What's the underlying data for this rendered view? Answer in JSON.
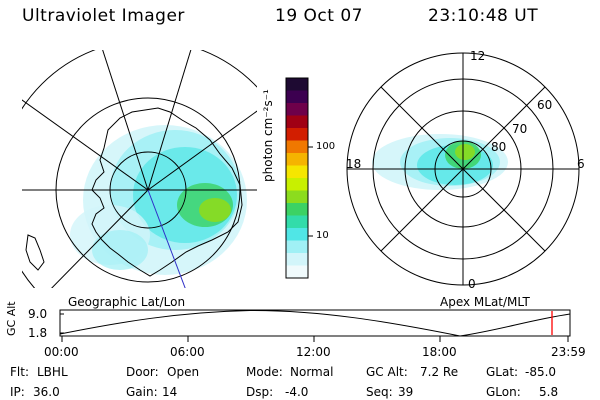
{
  "header": {
    "title": "Ultraviolet Imager",
    "date": "19 Oct 07",
    "time": "23:10:48 UT"
  },
  "left_panel": {
    "label": "Geographic Lat/Lon"
  },
  "right_panel": {
    "label": "Apex MLat/MLT",
    "mlt_labels": {
      "top": "12",
      "left": "18",
      "right": "6",
      "bottom": "0"
    },
    "mlat_labels": [
      "60",
      "70",
      "80"
    ]
  },
  "colorbar": {
    "unit_label": "photon cm⁻²s⁻¹",
    "ticks": [
      "100",
      "10"
    ],
    "colors": [
      "#1e0a32",
      "#3c0050",
      "#6e004a",
      "#a00014",
      "#d21e00",
      "#f07800",
      "#f5b400",
      "#f5e600",
      "#c8f000",
      "#8cdc1e",
      "#3cd264",
      "#32dcaa",
      "#50e6e6",
      "#a0f0f5",
      "#d2f5fa",
      "#f0fafc"
    ]
  },
  "timeline": {
    "axis_label": "GC Alt",
    "y_ticks": [
      "9.0",
      "1.8"
    ],
    "x_ticks": [
      "00:00",
      "06:00",
      "12:00",
      "18:00",
      "23:59"
    ],
    "current_time_color": "#ff0000"
  },
  "status": {
    "rows": [
      [
        {
          "label": "Flt:",
          "value": "LBHL"
        },
        {
          "label": "Door:",
          "value": "Open"
        },
        {
          "label": "Mode:",
          "value": "Normal"
        },
        {
          "label": "GC Alt:",
          "value": "7.2 Re"
        },
        {
          "label": "GLat:",
          "value": "-85.0"
        }
      ],
      [
        {
          "label": "IP:",
          "value": "36.0"
        },
        {
          "label": "Gain:",
          "value": "14"
        },
        {
          "label": "Dsp:",
          "value": "-4.0"
        },
        {
          "label": "Seq:",
          "value": "39"
        },
        {
          "label": "GLon:",
          "value": "5.8"
        }
      ]
    ]
  }
}
